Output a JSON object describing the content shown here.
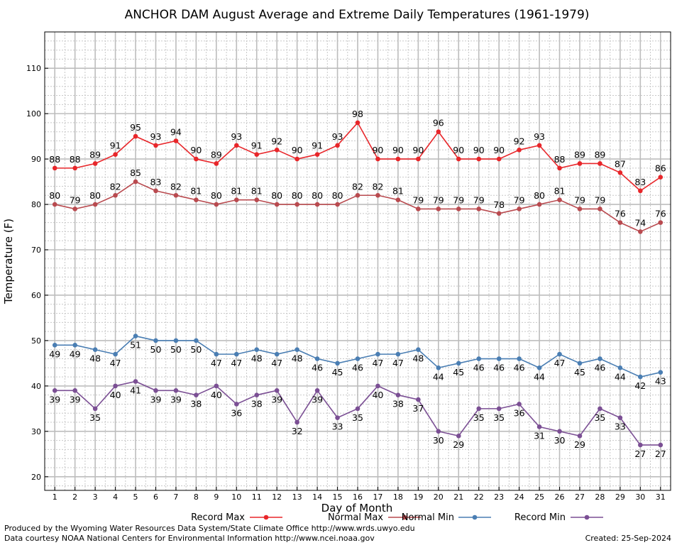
{
  "chart_data": {
    "type": "line",
    "title": "ANCHOR DAM August Average and Extreme Daily Temperatures (1961-1979)",
    "xlabel": "Day of Month",
    "ylabel": "Temperature (F)",
    "ylim": [
      17,
      118
    ],
    "xlim": [
      0.5,
      31.5
    ],
    "yticks": [
      20,
      30,
      40,
      50,
      60,
      70,
      80,
      90,
      100,
      110
    ],
    "x": [
      1,
      2,
      3,
      4,
      5,
      6,
      7,
      8,
      9,
      10,
      11,
      12,
      13,
      14,
      15,
      16,
      17,
      18,
      19,
      20,
      21,
      22,
      23,
      24,
      25,
      26,
      27,
      28,
      29,
      30,
      31
    ],
    "grid": true,
    "legend_position": "bottom",
    "series": [
      {
        "name": "Record Max",
        "color": "#e8262a",
        "label_position": "above",
        "values": [
          88,
          88,
          89,
          91,
          95,
          93,
          94,
          90,
          89,
          93,
          91,
          92,
          90,
          91,
          93,
          98,
          90,
          90,
          90,
          96,
          90,
          90,
          90,
          92,
          93,
          88,
          89,
          89,
          87,
          83,
          86
        ]
      },
      {
        "name": "Normal Max",
        "color": "#b94a4f",
        "label_position": "above",
        "values": [
          80,
          79,
          80,
          82,
          85,
          83,
          82,
          81,
          80,
          81,
          81,
          80,
          80,
          80,
          80,
          82,
          82,
          81,
          79,
          79,
          79,
          79,
          78,
          79,
          80,
          81,
          79,
          79,
          76,
          74,
          76
        ]
      },
      {
        "name": "Normal Min",
        "color": "#4a7eb3",
        "label_position": "below",
        "values": [
          49,
          49,
          48,
          47,
          51,
          50,
          50,
          50,
          47,
          47,
          48,
          47,
          48,
          46,
          45,
          46,
          47,
          47,
          48,
          44,
          45,
          46,
          46,
          46,
          44,
          47,
          45,
          46,
          44,
          42,
          43
        ]
      },
      {
        "name": "Record Min",
        "color": "#7b4f94",
        "label_position": "below",
        "values": [
          39,
          39,
          35,
          40,
          41,
          39,
          39,
          38,
          40,
          36,
          38,
          39,
          32,
          39,
          33,
          35,
          40,
          38,
          37,
          30,
          29,
          35,
          35,
          36,
          31,
          30,
          29,
          35,
          33,
          27,
          27
        ]
      }
    ]
  },
  "footer": {
    "line1": "Produced by the Wyoming Water Resources Data System/State Climate Office http://www.wrds.uwyo.edu",
    "line2": "Data courtesy NOAA National Centers for Environmental Information http://www.ncei.noaa.gov",
    "created": "Created:  25-Sep-2024"
  }
}
